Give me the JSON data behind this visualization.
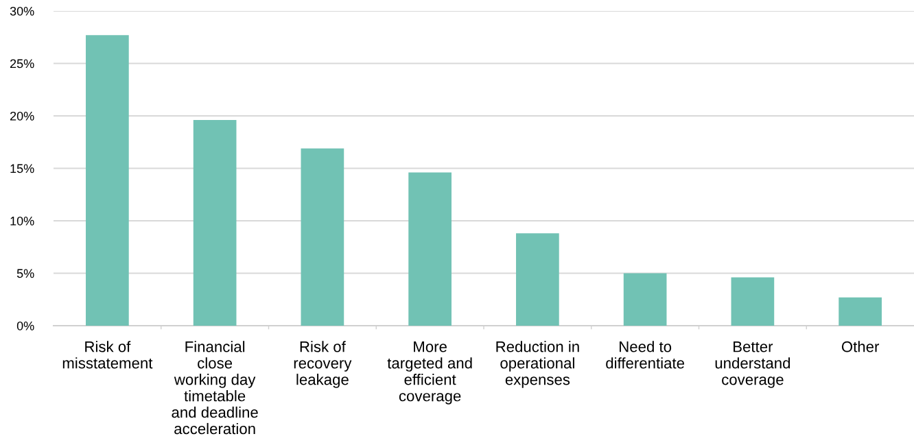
{
  "chart_data": {
    "type": "bar",
    "categories": [
      "Risk of\nmisstatement",
      "Financial\nclose\nworking day\ntimetable\nand deadline\nacceleration",
      "Risk of\nrecovery\nleakage",
      "More\ntargeted and\nefficient\ncoverage",
      "Reduction in\noperational\nexpenses",
      "Need to\ndifferentiate",
      "Better\nunderstand\ncoverage",
      "Other"
    ],
    "values": [
      27.7,
      19.6,
      16.9,
      14.6,
      8.8,
      5.0,
      4.6,
      2.7
    ],
    "color": "#71c2b4",
    "ylim": [
      0,
      30
    ],
    "yticks": [
      {
        "value": 0,
        "label": "0%"
      },
      {
        "value": 5,
        "label": "5%"
      },
      {
        "value": 10,
        "label": "10%"
      },
      {
        "value": 15,
        "label": "15%"
      },
      {
        "value": 20,
        "label": "20%"
      },
      {
        "value": 25,
        "label": "25%"
      },
      {
        "value": 30,
        "label": "30%"
      }
    ],
    "grid": "y",
    "legend": false
  }
}
